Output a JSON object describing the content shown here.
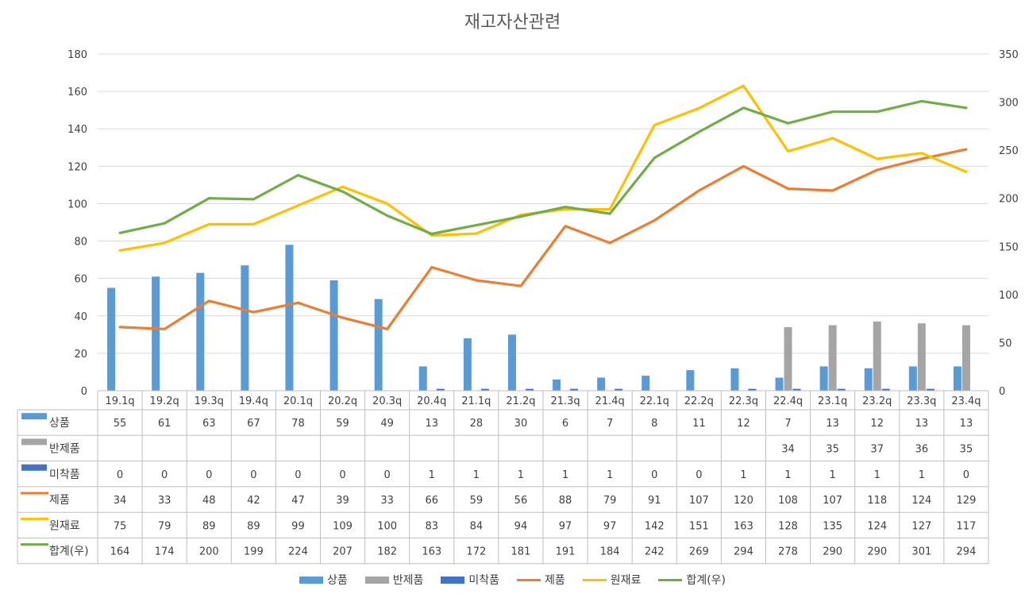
{
  "chart_data": {
    "type": "bar+line",
    "title": "재고자산관련",
    "categories": [
      "19.1q",
      "19.2q",
      "19.3q",
      "19.4q",
      "20.1q",
      "20.2q",
      "20.3q",
      "20.4q",
      "21.1q",
      "21.2q",
      "21.3q",
      "21.4q",
      "22.1q",
      "22.2q",
      "22.3q",
      "22.4q",
      "23.1q",
      "23.2q",
      "23.3q",
      "23.4q"
    ],
    "left_axis": {
      "ylim": [
        0,
        180
      ],
      "ticks": [
        0,
        20,
        40,
        60,
        80,
        100,
        120,
        140,
        160,
        180
      ]
    },
    "right_axis": {
      "ylim": [
        0,
        350
      ],
      "ticks": [
        0,
        50,
        100,
        150,
        200,
        250,
        300,
        350
      ]
    },
    "grid": true,
    "legend_position": "bottom",
    "data_table": true,
    "series": [
      {
        "name": "상품",
        "kind": "bar",
        "axis": "left",
        "color": "#5b9bd5",
        "values": [
          55,
          61,
          63,
          67,
          78,
          59,
          49,
          13,
          28,
          30,
          6,
          7,
          8,
          11,
          12,
          7,
          13,
          12,
          13,
          13
        ]
      },
      {
        "name": "반제품",
        "kind": "bar",
        "axis": "left",
        "color": "#a5a5a5",
        "values": [
          null,
          null,
          null,
          null,
          null,
          null,
          null,
          null,
          null,
          null,
          null,
          null,
          null,
          null,
          null,
          34,
          35,
          37,
          36,
          35
        ]
      },
      {
        "name": "미착품",
        "kind": "bar",
        "axis": "left",
        "color": "#4472c4",
        "values": [
          0,
          0,
          0,
          0,
          0,
          0,
          0,
          1,
          1,
          1,
          1,
          1,
          0,
          0,
          1,
          1,
          1,
          1,
          1,
          0
        ]
      },
      {
        "name": "제품",
        "kind": "line",
        "axis": "left",
        "color": "#ed7d31",
        "values": [
          34,
          33,
          48,
          42,
          47,
          39,
          33,
          66,
          59,
          56,
          88,
          79,
          91,
          107,
          120,
          108,
          107,
          118,
          124,
          129
        ]
      },
      {
        "name": "원재료",
        "kind": "line",
        "axis": "left",
        "color": "#ffc000",
        "values": [
          75,
          79,
          89,
          89,
          99,
          109,
          100,
          83,
          84,
          94,
          97,
          97,
          142,
          151,
          163,
          128,
          135,
          124,
          127,
          117
        ]
      },
      {
        "name": "합계(우)",
        "kind": "line",
        "axis": "right",
        "color": "#70ad47",
        "values": [
          164,
          174,
          200,
          199,
          224,
          207,
          182,
          163,
          172,
          181,
          191,
          184,
          242,
          269,
          294,
          278,
          290,
          290,
          301,
          294
        ]
      }
    ]
  }
}
